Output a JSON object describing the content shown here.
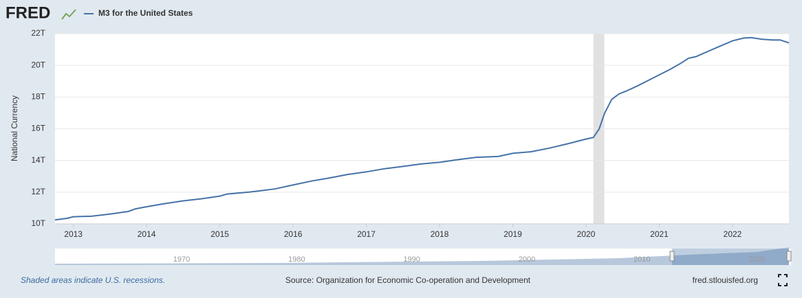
{
  "chart_data": {
    "type": "line",
    "logo": "FRED",
    "ylabel": "National Currency",
    "x": [
      2012.75,
      2012.92,
      2013.0,
      2013.25,
      2013.5,
      2013.75,
      2013.85,
      2014.0,
      2014.25,
      2014.5,
      2014.75,
      2015.0,
      2015.1,
      2015.4,
      2015.75,
      2016.0,
      2016.25,
      2016.5,
      2016.75,
      2017.0,
      2017.25,
      2017.5,
      2017.75,
      2018.0,
      2018.25,
      2018.5,
      2018.8,
      2019.0,
      2019.25,
      2019.5,
      2019.75,
      2020.0,
      2020.1,
      2020.18,
      2020.25,
      2020.35,
      2020.45,
      2020.55,
      2020.7,
      2020.85,
      2021.0,
      2021.15,
      2021.3,
      2021.4,
      2021.5,
      2021.65,
      2021.8,
      2022.0,
      2022.15,
      2022.25,
      2022.4,
      2022.55,
      2022.65,
      2022.77
    ],
    "series": [
      {
        "name": "M3 for the United States",
        "color": "#4572a7",
        "values": [
          10.25,
          10.35,
          10.45,
          10.48,
          10.62,
          10.78,
          10.95,
          11.08,
          11.28,
          11.45,
          11.58,
          11.75,
          11.88,
          12.0,
          12.2,
          12.45,
          12.7,
          12.9,
          13.12,
          13.28,
          13.48,
          13.62,
          13.78,
          13.88,
          14.05,
          14.2,
          14.25,
          14.45,
          14.55,
          14.78,
          15.05,
          15.35,
          15.45,
          16.0,
          16.95,
          17.85,
          18.2,
          18.38,
          18.7,
          19.05,
          19.4,
          19.75,
          20.15,
          20.45,
          20.55,
          20.85,
          21.15,
          21.55,
          21.72,
          21.75,
          21.65,
          21.6,
          21.6,
          21.42
        ]
      }
    ],
    "xlim": [
      2012.75,
      2022.77
    ],
    "xticks": [
      2013,
      2014,
      2015,
      2016,
      2017,
      2018,
      2019,
      2020,
      2021,
      2022
    ],
    "ylim": [
      10,
      22
    ],
    "yticks": [
      {
        "value": 10,
        "label": "10T"
      },
      {
        "value": 12,
        "label": "12T"
      },
      {
        "value": 14,
        "label": "14T"
      },
      {
        "value": 16,
        "label": "16T"
      },
      {
        "value": 18,
        "label": "18T"
      },
      {
        "value": 20,
        "label": "20T"
      },
      {
        "value": 22,
        "label": "22T"
      }
    ],
    "grid": true,
    "recessions": [
      [
        2020.1,
        2020.25
      ]
    ],
    "navigator": {
      "xlim": [
        1959,
        2022.77
      ],
      "xticks": [
        1970,
        1980,
        1990,
        2000,
        2010,
        2020
      ]
    },
    "footnote": "Shaded areas indicate U.S. recessions.",
    "source": "Source: Organization for Economic Co-operation and Development",
    "site": "fred.stlouisfed.org"
  }
}
